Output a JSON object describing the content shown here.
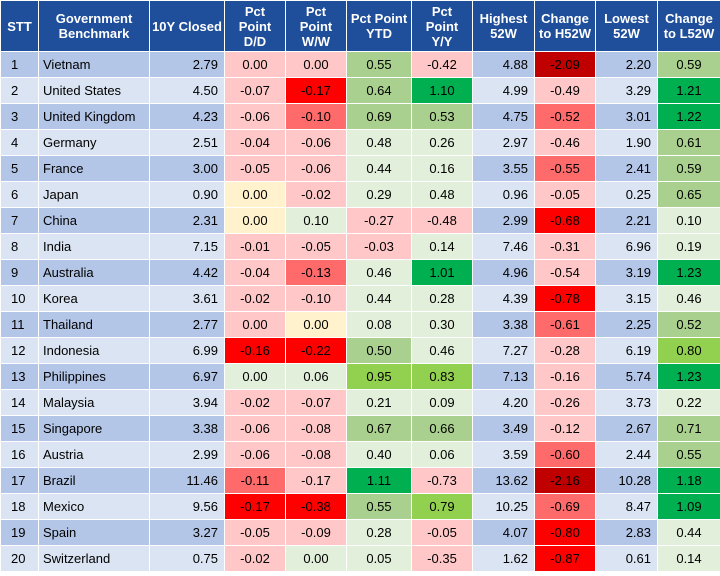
{
  "columns": [
    "STT",
    "Government Benchmark",
    "10Y Closed",
    "Pct Point D/D",
    "Pct Point W/W",
    "Pct Point YTD",
    "Pct Point Y/Y",
    "Highest 52W",
    "Change to H52W",
    "Lowest 52W",
    "Change to L52W"
  ],
  "colors": {
    "header": "#1f4e9a",
    "row_odd": "#b4c6e7",
    "row_even": "#dbe4f2",
    "neutral_yellow": "#fff2cc",
    "dark_red": "#c00000",
    "red": "#ff0000",
    "medium_red": "#ff6b6b",
    "light_red": "#ffc7c7",
    "light_green": "#e2efda",
    "medium_green": "#a9d08e",
    "green": "#92d050",
    "bright_green": "#00b050"
  },
  "rows": [
    {
      "stt": "1",
      "name": "Vietnam",
      "closed": "2.79",
      "dd": "0.00",
      "ww": "0.00",
      "ytd": "0.55",
      "yy": "-0.42",
      "high": "4.88",
      "h52": "-2.09",
      "low": "2.20",
      "l52": "0.59",
      "c": {
        "dd": "light_red",
        "ww": "light_red",
        "ytd": "medium_green",
        "yy": "light_red",
        "h52": "dark_red",
        "l52": "medium_green"
      }
    },
    {
      "stt": "2",
      "name": "United States",
      "closed": "4.50",
      "dd": "-0.07",
      "ww": "-0.17",
      "ytd": "0.64",
      "yy": "1.10",
      "high": "4.99",
      "h52": "-0.49",
      "low": "3.29",
      "l52": "1.21",
      "c": {
        "dd": "light_red",
        "ww": "red",
        "ytd": "medium_green",
        "yy": "bright_green",
        "h52": "light_red",
        "l52": "bright_green"
      }
    },
    {
      "stt": "3",
      "name": "United Kingdom",
      "closed": "4.23",
      "dd": "-0.06",
      "ww": "-0.10",
      "ytd": "0.69",
      "yy": "0.53",
      "high": "4.75",
      "h52": "-0.52",
      "low": "3.01",
      "l52": "1.22",
      "c": {
        "dd": "light_red",
        "ww": "medium_red",
        "ytd": "medium_green",
        "yy": "medium_green",
        "h52": "medium_red",
        "l52": "bright_green"
      }
    },
    {
      "stt": "4",
      "name": "Germany",
      "closed": "2.51",
      "dd": "-0.04",
      "ww": "-0.06",
      "ytd": "0.48",
      "yy": "0.26",
      "high": "2.97",
      "h52": "-0.46",
      "low": "1.90",
      "l52": "0.61",
      "c": {
        "dd": "light_red",
        "ww": "light_red",
        "ytd": "light_green",
        "yy": "light_green",
        "h52": "light_red",
        "l52": "medium_green"
      }
    },
    {
      "stt": "5",
      "name": "France",
      "closed": "3.00",
      "dd": "-0.05",
      "ww": "-0.06",
      "ytd": "0.44",
      "yy": "0.16",
      "high": "3.55",
      "h52": "-0.55",
      "low": "2.41",
      "l52": "0.59",
      "c": {
        "dd": "light_red",
        "ww": "light_red",
        "ytd": "light_green",
        "yy": "light_green",
        "h52": "medium_red",
        "l52": "medium_green"
      }
    },
    {
      "stt": "6",
      "name": "Japan",
      "closed": "0.90",
      "dd": "0.00",
      "ww": "-0.02",
      "ytd": "0.29",
      "yy": "0.48",
      "high": "0.96",
      "h52": "-0.05",
      "low": "0.25",
      "l52": "0.65",
      "c": {
        "dd": "neutral_yellow",
        "ww": "light_red",
        "ytd": "light_green",
        "yy": "light_green",
        "h52": "light_red",
        "l52": "medium_green"
      }
    },
    {
      "stt": "7",
      "name": "China",
      "closed": "2.31",
      "dd": "0.00",
      "ww": "0.10",
      "ytd": "-0.27",
      "yy": "-0.48",
      "high": "2.99",
      "h52": "-0.68",
      "low": "2.21",
      "l52": "0.10",
      "c": {
        "dd": "neutral_yellow",
        "ww": "light_green",
        "ytd": "light_red",
        "yy": "light_red",
        "h52": "red",
        "l52": "light_green"
      }
    },
    {
      "stt": "8",
      "name": "India",
      "closed": "7.15",
      "dd": "-0.01",
      "ww": "-0.05",
      "ytd": "-0.03",
      "yy": "0.14",
      "high": "7.46",
      "h52": "-0.31",
      "low": "6.96",
      "l52": "0.19",
      "c": {
        "dd": "light_red",
        "ww": "light_red",
        "ytd": "light_red",
        "yy": "light_green",
        "h52": "light_red",
        "l52": "light_green"
      }
    },
    {
      "stt": "9",
      "name": "Australia",
      "closed": "4.42",
      "dd": "-0.04",
      "ww": "-0.13",
      "ytd": "0.46",
      "yy": "1.01",
      "high": "4.96",
      "h52": "-0.54",
      "low": "3.19",
      "l52": "1.23",
      "c": {
        "dd": "light_red",
        "ww": "medium_red",
        "ytd": "light_green",
        "yy": "bright_green",
        "h52": "light_red",
        "l52": "bright_green"
      }
    },
    {
      "stt": "10",
      "name": "Korea",
      "closed": "3.61",
      "dd": "-0.02",
      "ww": "-0.10",
      "ytd": "0.44",
      "yy": "0.28",
      "high": "4.39",
      "h52": "-0.78",
      "low": "3.15",
      "l52": "0.46",
      "c": {
        "dd": "light_red",
        "ww": "light_red",
        "ytd": "light_green",
        "yy": "light_green",
        "h52": "red",
        "l52": "light_green"
      }
    },
    {
      "stt": "11",
      "name": "Thailand",
      "closed": "2.77",
      "dd": "0.00",
      "ww": "0.00",
      "ytd": "0.08",
      "yy": "0.30",
      "high": "3.38",
      "h52": "-0.61",
      "low": "2.25",
      "l52": "0.52",
      "c": {
        "dd": "light_red",
        "ww": "neutral_yellow",
        "ytd": "light_green",
        "yy": "light_green",
        "h52": "medium_red",
        "l52": "medium_green"
      }
    },
    {
      "stt": "12",
      "name": "Indonesia",
      "closed": "6.99",
      "dd": "-0.16",
      "ww": "-0.22",
      "ytd": "0.50",
      "yy": "0.46",
      "high": "7.27",
      "h52": "-0.28",
      "low": "6.19",
      "l52": "0.80",
      "c": {
        "dd": "red",
        "ww": "red",
        "ytd": "medium_green",
        "yy": "light_green",
        "h52": "light_red",
        "l52": "green"
      }
    },
    {
      "stt": "13",
      "name": "Philippines",
      "closed": "6.97",
      "dd": "0.00",
      "ww": "0.06",
      "ytd": "0.95",
      "yy": "0.83",
      "high": "7.13",
      "h52": "-0.16",
      "low": "5.74",
      "l52": "1.23",
      "c": {
        "dd": "light_green",
        "ww": "light_green",
        "ytd": "green",
        "yy": "green",
        "h52": "light_red",
        "l52": "bright_green"
      }
    },
    {
      "stt": "14",
      "name": "Malaysia",
      "closed": "3.94",
      "dd": "-0.02",
      "ww": "-0.07",
      "ytd": "0.21",
      "yy": "0.09",
      "high": "4.20",
      "h52": "-0.26",
      "low": "3.73",
      "l52": "0.22",
      "c": {
        "dd": "light_red",
        "ww": "light_red",
        "ytd": "light_green",
        "yy": "light_green",
        "h52": "light_red",
        "l52": "light_green"
      }
    },
    {
      "stt": "15",
      "name": "Singapore",
      "closed": "3.38",
      "dd": "-0.06",
      "ww": "-0.08",
      "ytd": "0.67",
      "yy": "0.66",
      "high": "3.49",
      "h52": "-0.12",
      "low": "2.67",
      "l52": "0.71",
      "c": {
        "dd": "light_red",
        "ww": "light_red",
        "ytd": "medium_green",
        "yy": "medium_green",
        "h52": "light_red",
        "l52": "medium_green"
      }
    },
    {
      "stt": "16",
      "name": "Austria",
      "closed": "2.99",
      "dd": "-0.06",
      "ww": "-0.08",
      "ytd": "0.40",
      "yy": "0.06",
      "high": "3.59",
      "h52": "-0.60",
      "low": "2.44",
      "l52": "0.55",
      "c": {
        "dd": "light_red",
        "ww": "light_red",
        "ytd": "light_green",
        "yy": "light_green",
        "h52": "medium_red",
        "l52": "medium_green"
      }
    },
    {
      "stt": "17",
      "name": "Brazil",
      "closed": "11.46",
      "dd": "-0.11",
      "ww": "-0.17",
      "ytd": "1.11",
      "yy": "-0.73",
      "high": "13.62",
      "h52": "-2.16",
      "low": "10.28",
      "l52": "1.18",
      "c": {
        "dd": "medium_red",
        "ww": "light_red",
        "ytd": "bright_green",
        "yy": "light_red",
        "h52": "dark_red",
        "l52": "bright_green"
      }
    },
    {
      "stt": "18",
      "name": "Mexico",
      "closed": "9.56",
      "dd": "-0.17",
      "ww": "-0.38",
      "ytd": "0.55",
      "yy": "0.79",
      "high": "10.25",
      "h52": "-0.69",
      "low": "8.47",
      "l52": "1.09",
      "c": {
        "dd": "red",
        "ww": "red",
        "ytd": "medium_green",
        "yy": "green",
        "h52": "medium_red",
        "l52": "bright_green"
      }
    },
    {
      "stt": "19",
      "name": "Spain",
      "closed": "3.27",
      "dd": "-0.05",
      "ww": "-0.09",
      "ytd": "0.28",
      "yy": "-0.05",
      "high": "4.07",
      "h52": "-0.80",
      "low": "2.83",
      "l52": "0.44",
      "c": {
        "dd": "light_red",
        "ww": "light_red",
        "ytd": "light_green",
        "yy": "light_red",
        "h52": "red",
        "l52": "light_green"
      }
    },
    {
      "stt": "20",
      "name": "Switzerland",
      "closed": "0.75",
      "dd": "-0.02",
      "ww": "0.00",
      "ytd": "0.05",
      "yy": "-0.35",
      "high": "1.62",
      "h52": "-0.87",
      "low": "0.61",
      "l52": "0.14",
      "c": {
        "dd": "light_red",
        "ww": "light_green",
        "ytd": "light_green",
        "yy": "light_red",
        "h52": "red",
        "l52": "light_green"
      }
    }
  ]
}
